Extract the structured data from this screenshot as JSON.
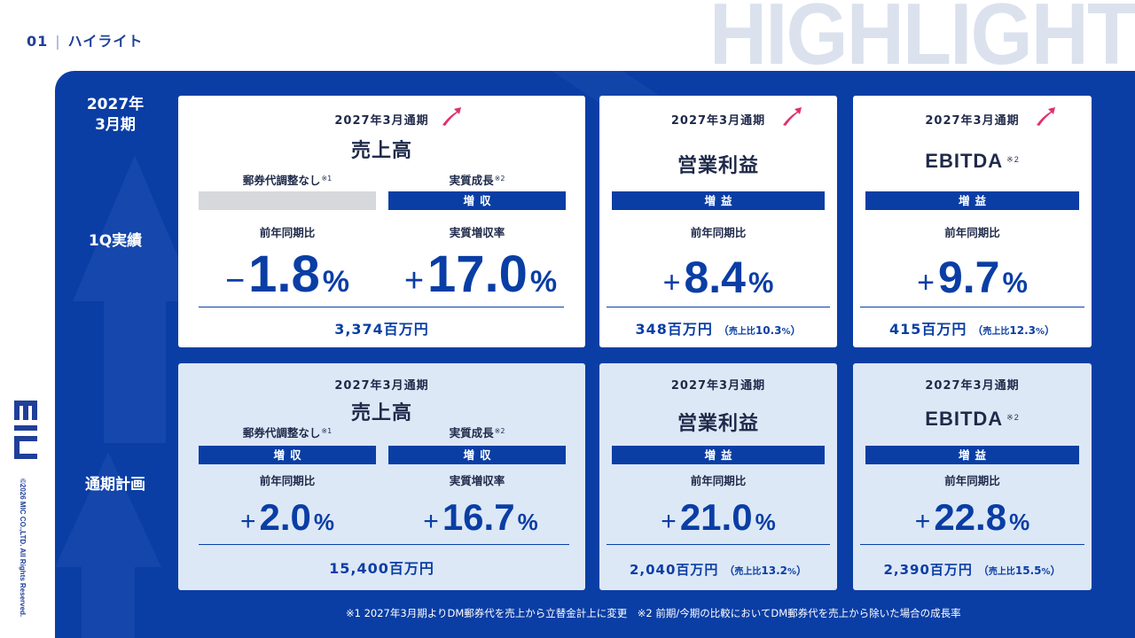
{
  "header": {
    "section_number": "01",
    "section_title": "ハイライト",
    "background_word": "HIGHLIGHT"
  },
  "sidebar": {
    "logo_text": "MIC",
    "copyright": "©2026 MIC CO.,LTD. All Rights Reserved."
  },
  "row_labels": {
    "period": "2027年\n3月期",
    "q1": "1Q実績",
    "plan": "通期計画"
  },
  "cards": {
    "q1_sales": {
      "period": "2027年3月通期",
      "title": "売上高",
      "left_label": "郵券代調整なし",
      "left_note": "※1",
      "right_label": "実質成長",
      "right_note": "※2",
      "left_badge": "",
      "right_badge": "増収",
      "left_compare": "前年同期比",
      "right_compare": "実質増収率",
      "left_sign": "−",
      "left_value": "1.8",
      "right_sign": "+",
      "right_value": "17.0",
      "pct": "%",
      "amount": "3,374百万円"
    },
    "q1_op": {
      "period": "2027年3月通期",
      "title": "営業利益",
      "badge": "増益",
      "compare": "前年同期比",
      "sign": "+",
      "value": "8.4",
      "pct": "%",
      "amount": "348百万円",
      "ratio_open": "（",
      "ratio_label": "売上比",
      "ratio_value": "10.3",
      "ratio_pct": "%",
      "ratio_close": "）"
    },
    "q1_ebitda": {
      "period": "2027年3月通期",
      "title": "EBITDA",
      "note": "※2",
      "badge": "増益",
      "compare": "前年同期比",
      "sign": "+",
      "value": "9.7",
      "pct": "%",
      "amount": "415百万円",
      "ratio_open": "（",
      "ratio_label": "売上比",
      "ratio_value": "12.3",
      "ratio_pct": "%",
      "ratio_close": "）"
    },
    "plan_sales": {
      "period": "2027年3月通期",
      "title": "売上高",
      "left_label": "郵券代調整なし",
      "left_note": "※1",
      "right_label": "実質成長",
      "right_note": "※2",
      "left_badge": "増収",
      "right_badge": "増収",
      "left_compare": "前年同期比",
      "right_compare": "実質増収率",
      "left_sign": "+",
      "left_value": "2.0",
      "right_sign": "+",
      "right_value": "16.7",
      "pct": "%",
      "amount": "15,400百万円"
    },
    "plan_op": {
      "period": "2027年3月通期",
      "title": "営業利益",
      "badge": "増益",
      "compare": "前年同期比",
      "sign": "+",
      "value": "21.0",
      "pct": "%",
      "amount": "2,040百万円",
      "ratio_open": "（",
      "ratio_label": "売上比",
      "ratio_value": "13.2",
      "ratio_pct": "%",
      "ratio_close": "）"
    },
    "plan_ebitda": {
      "period": "2027年3月通期",
      "title": "EBITDA",
      "note": "※2",
      "badge": "増益",
      "compare": "前年同期比",
      "sign": "+",
      "value": "22.8",
      "pct": "%",
      "amount": "2,390百万円",
      "ratio_open": "（",
      "ratio_label": "売上比",
      "ratio_value": "15.5",
      "ratio_pct": "%",
      "ratio_close": "）"
    }
  },
  "footnote": "※1 2027年3月期よりDM郵券代を売上から立替金計上に変更　※2 前期/今期の比較においてDM郵券代を売上から除いた場合の成長率",
  "colors": {
    "primary": "#0a3ea5",
    "card_light": "#dde8f6",
    "arrow_accent": "#e0306a"
  },
  "icons": {
    "trend": "trend-up-arrow-icon"
  }
}
